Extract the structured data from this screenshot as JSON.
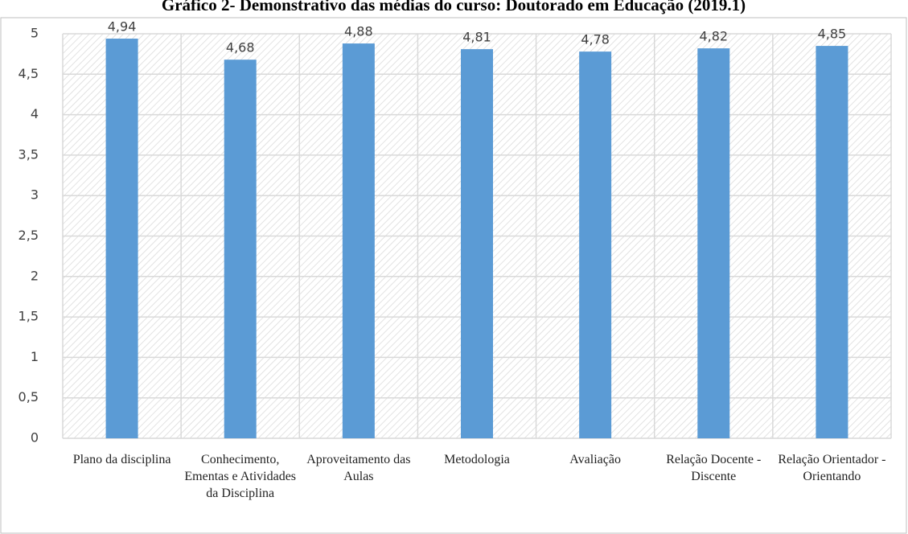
{
  "chart_data": {
    "type": "bar",
    "title": "Gráfico 2- Demonstrativo das médias do curso: Doutorado em Educação (2019.1)",
    "categories": [
      "Plano da disciplina",
      "Conhecimento, Ementas e Atividades da Disciplina",
      "Aproveitamento das Aulas",
      "Metodologia",
      "Avaliação",
      "Relação Docente - Discente",
      "Relação Orientador - Orientando"
    ],
    "values": [
      4.94,
      4.68,
      4.88,
      4.81,
      4.78,
      4.82,
      4.85
    ],
    "value_labels": [
      "4,94",
      "4,68",
      "4,88",
      "4,81",
      "4,78",
      "4,82",
      "4,85"
    ],
    "color": "#5b9bd5",
    "ylim": [
      0,
      5
    ],
    "yticks": [
      0,
      {
        "value": 0.5,
        "label": "0,5"
      },
      1,
      {
        "value": 1.5,
        "label": "1,5"
      },
      2,
      {
        "value": 2.5,
        "label": "2,5"
      },
      3,
      {
        "value": 3.5,
        "label": "3,5"
      },
      4,
      {
        "value": 4.5,
        "label": "4,5"
      },
      5
    ],
    "grid": true
  }
}
